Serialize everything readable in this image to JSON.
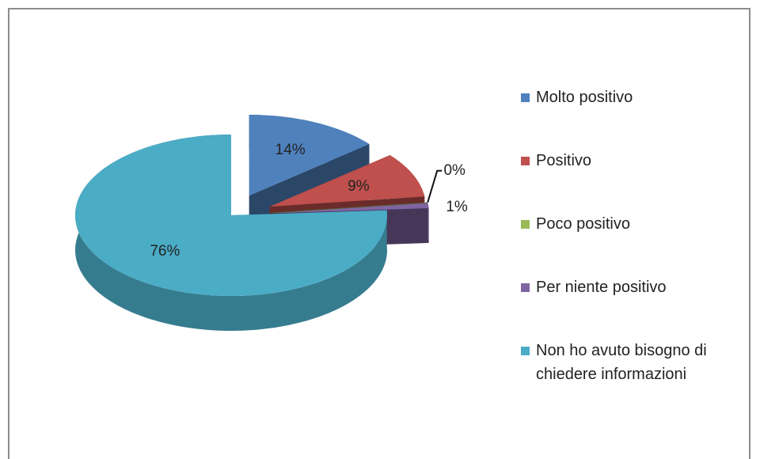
{
  "chart_data": {
    "type": "pie3d",
    "categories": [
      "Molto positivo",
      "Positivo",
      "Poco positivo",
      "Per niente positivo",
      "Non ho avuto bisogno di chiedere informazioni"
    ],
    "values": [
      14,
      9,
      0,
      1,
      76
    ],
    "value_labels": [
      "14%",
      "9%",
      "0%",
      "1%",
      "76%"
    ],
    "colors": [
      "#4f81bd",
      "#c0504d",
      "#9bbb59",
      "#8064a2",
      "#4bacc6"
    ],
    "legend": "right"
  }
}
